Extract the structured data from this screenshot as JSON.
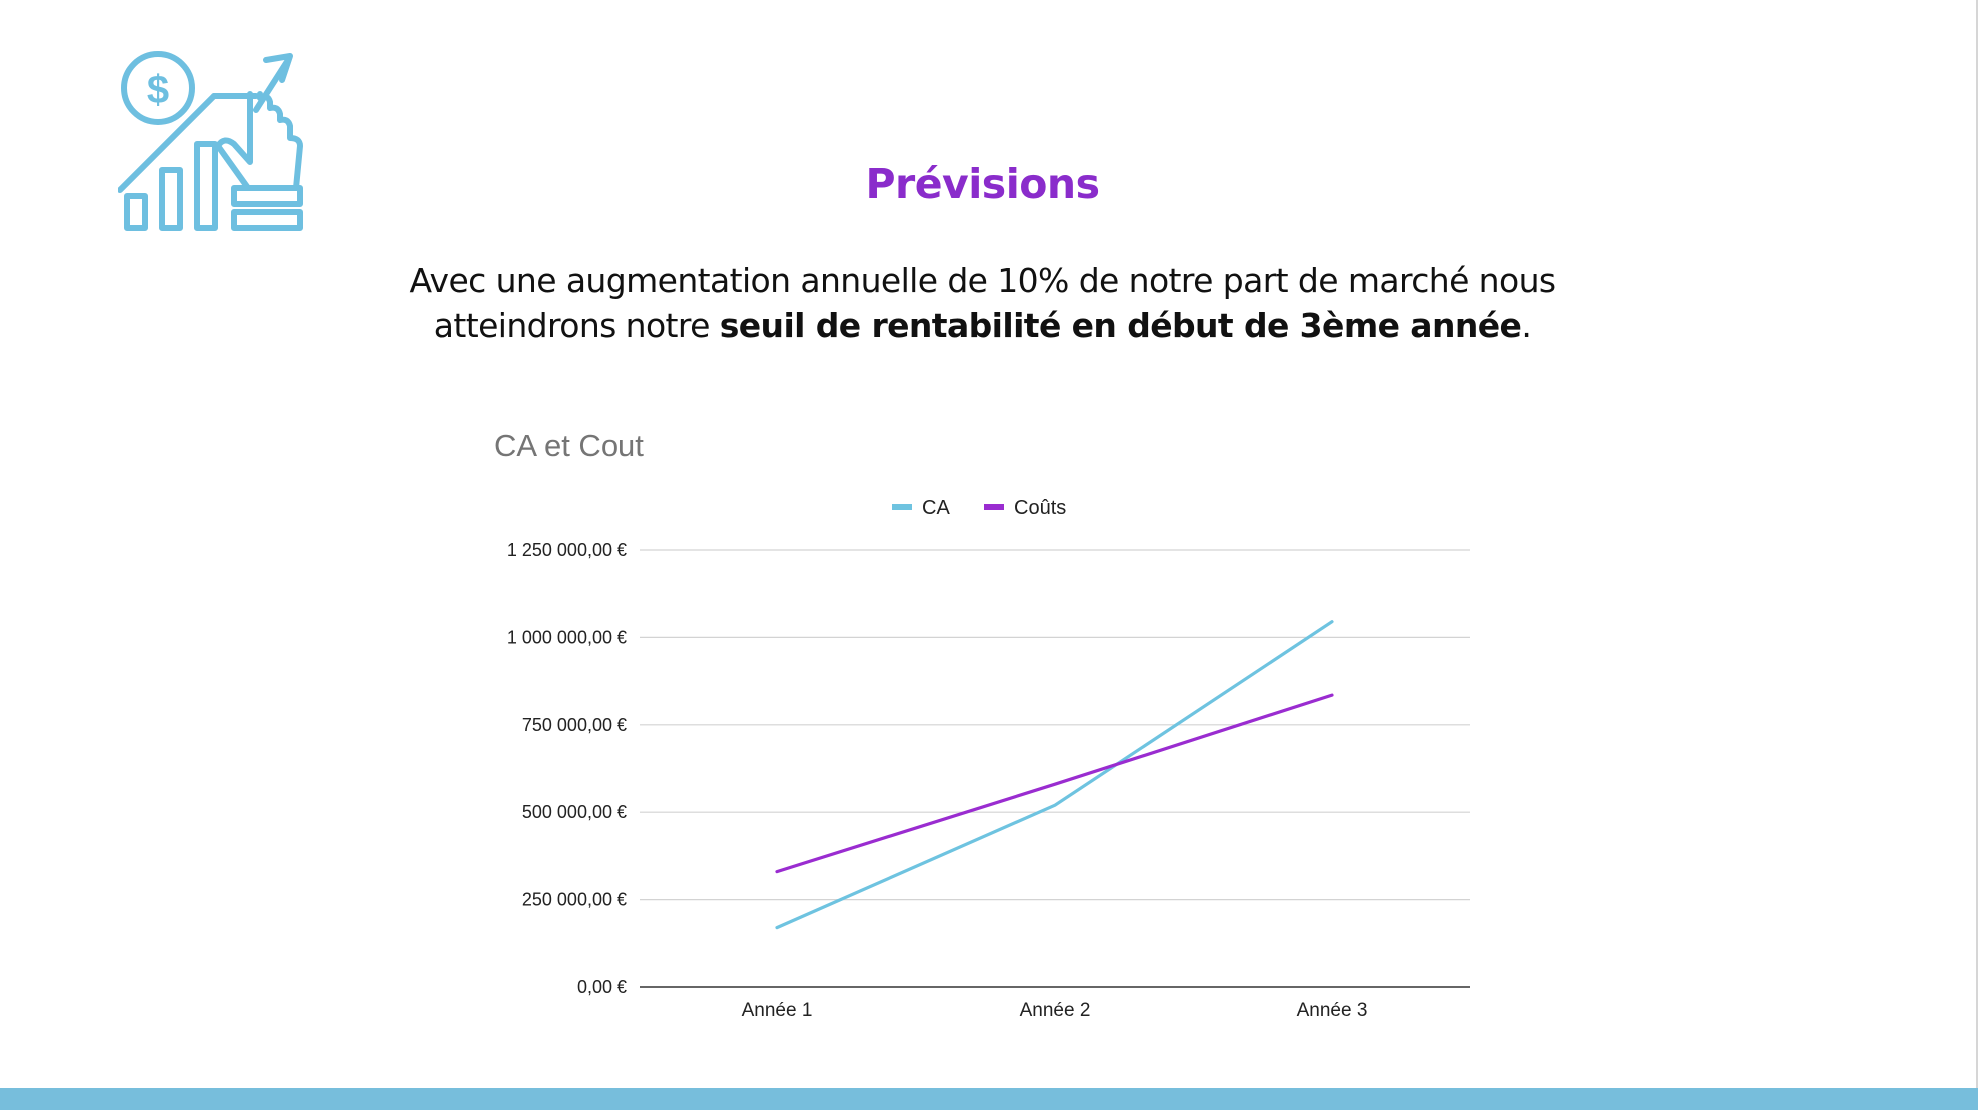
{
  "slide": {
    "title": "Prévisions",
    "subtitle_normal": "Avec une augmentation annuelle de 10% de notre part de marché nous atteindrons notre ",
    "subtitle_bold": "seuil de rentabilité en début de 3ème année",
    "subtitle_end": "."
  },
  "logo": {
    "icon": "growth-chart-hand-dollar-icon",
    "color": "#6ebfe0"
  },
  "colors": {
    "title": "#8a2ccb",
    "bottom_bar": "#77bedc"
  },
  "chart_data": {
    "type": "line",
    "title": "CA et Cout",
    "categories": [
      "Année 1",
      "Année 2",
      "Année 3"
    ],
    "series": [
      {
        "name": "CA",
        "color": "#6ec3e0",
        "values": [
          170000,
          520000,
          1045000
        ]
      },
      {
        "name": "Coûts",
        "color": "#9a2cd0",
        "values": [
          330000,
          580000,
          835000
        ]
      }
    ],
    "y_ticks": [
      0,
      250000,
      500000,
      750000,
      1000000,
      1250000
    ],
    "y_tick_labels": [
      "0,00 €",
      "250 000,00 €",
      "500 000,00 €",
      "750 000,00 €",
      "1 000 000,00 €",
      "1 250 000,00 €"
    ],
    "ylim": [
      0,
      1250000
    ],
    "grid": true,
    "legend": "top-center"
  }
}
